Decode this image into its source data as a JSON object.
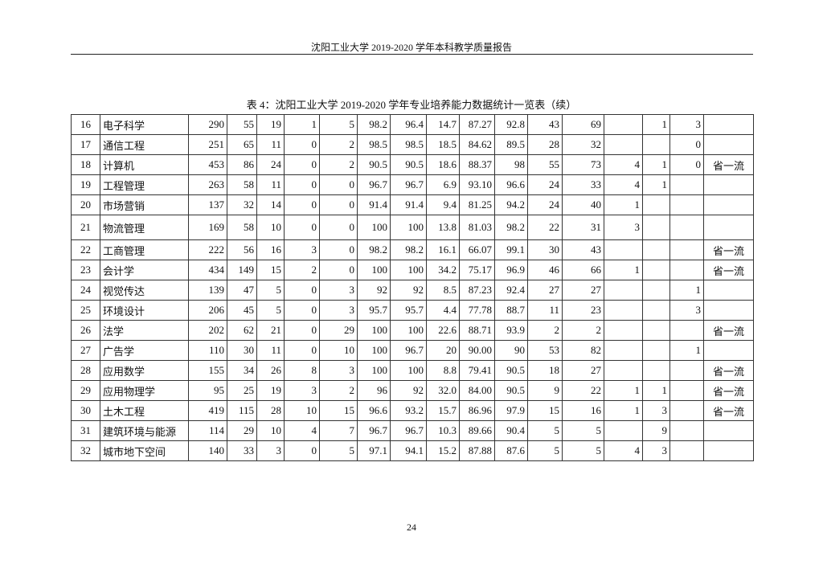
{
  "header": {
    "text": "沈阳工业大学 2019-2020 学年本科教学质量报告"
  },
  "table_title": "表 4：沈阳工业大学 2019-2020 学年专业培养能力数据统计一览表（续）",
  "rows": [
    {
      "no": "16",
      "name": "电子科学",
      "cells": [
        "290",
        "55",
        "19",
        "1",
        "5",
        "98.2",
        "96.4",
        "14.7",
        "87.27",
        "92.8",
        "43",
        "69",
        "",
        "1",
        "3",
        ""
      ]
    },
    {
      "no": "17",
      "name": "通信工程",
      "cells": [
        "251",
        "65",
        "11",
        "0",
        "2",
        "98.5",
        "98.5",
        "18.5",
        "84.62",
        "89.5",
        "28",
        "32",
        "",
        "",
        "0",
        ""
      ]
    },
    {
      "no": "18",
      "name": "计算机",
      "cells": [
        "453",
        "86",
        "24",
        "0",
        "2",
        "90.5",
        "90.5",
        "18.6",
        "88.37",
        "98",
        "55",
        "73",
        "4",
        "1",
        "0",
        "省一流"
      ]
    },
    {
      "no": "19",
      "name": "工程管理",
      "cells": [
        "263",
        "58",
        "11",
        "0",
        "0",
        "96.7",
        "96.7",
        "6.9",
        "93.10",
        "96.6",
        "24",
        "33",
        "4",
        "1",
        "",
        ""
      ]
    },
    {
      "no": "20",
      "name": "市场营销",
      "cells": [
        "137",
        "32",
        "14",
        "0",
        "0",
        "91.4",
        "91.4",
        "9.4",
        "81.25",
        "94.2",
        "24",
        "40",
        "1",
        "",
        "",
        ""
      ]
    },
    {
      "no": "21",
      "name": "物流管理",
      "cells": [
        "169",
        "58",
        "10",
        "0",
        "0",
        "100",
        "100",
        "13.8",
        "81.03",
        "98.2",
        "22",
        "31",
        "3",
        "",
        "",
        ""
      ]
    },
    {
      "no": "22",
      "name": "工商管理",
      "cells": [
        "222",
        "56",
        "16",
        "3",
        "0",
        "98.2",
        "98.2",
        "16.1",
        "66.07",
        "99.1",
        "30",
        "43",
        "",
        "",
        "",
        "省一流"
      ]
    },
    {
      "no": "23",
      "name": "会计学",
      "cells": [
        "434",
        "149",
        "15",
        "2",
        "0",
        "100",
        "100",
        "34.2",
        "75.17",
        "96.9",
        "46",
        "66",
        "1",
        "",
        "",
        "省一流"
      ]
    },
    {
      "no": "24",
      "name": "视觉传达",
      "cells": [
        "139",
        "47",
        "5",
        "0",
        "3",
        "92",
        "92",
        "8.5",
        "87.23",
        "92.4",
        "27",
        "27",
        "",
        "",
        "1",
        ""
      ]
    },
    {
      "no": "25",
      "name": "环境设计",
      "cells": [
        "206",
        "45",
        "5",
        "0",
        "3",
        "95.7",
        "95.7",
        "4.4",
        "77.78",
        "88.7",
        "11",
        "23",
        "",
        "",
        "3",
        ""
      ]
    },
    {
      "no": "26",
      "name": "法学",
      "cells": [
        "202",
        "62",
        "21",
        "0",
        "29",
        "100",
        "100",
        "22.6",
        "88.71",
        "93.9",
        "2",
        "2",
        "",
        "",
        "",
        "省一流"
      ]
    },
    {
      "no": "27",
      "name": "广告学",
      "cells": [
        "110",
        "30",
        "11",
        "0",
        "10",
        "100",
        "96.7",
        "20",
        "90.00",
        "90",
        "53",
        "82",
        "",
        "",
        "1",
        ""
      ]
    },
    {
      "no": "28",
      "name": "应用数学",
      "cells": [
        "155",
        "34",
        "26",
        "8",
        "3",
        "100",
        "100",
        "8.8",
        "79.41",
        "90.5",
        "18",
        "27",
        "",
        "",
        "",
        "省一流"
      ]
    },
    {
      "no": "29",
      "name": "应用物理学",
      "cells": [
        "95",
        "25",
        "19",
        "3",
        "2",
        "96",
        "92",
        "32.0",
        "84.00",
        "90.5",
        "9",
        "22",
        "1",
        "1",
        "",
        "省一流"
      ]
    },
    {
      "no": "30",
      "name": "土木工程",
      "cells": [
        "419",
        "115",
        "28",
        "10",
        "15",
        "96.6",
        "93.2",
        "15.7",
        "86.96",
        "97.9",
        "15",
        "16",
        "1",
        "3",
        "",
        "省一流"
      ]
    },
    {
      "no": "31",
      "name": "建筑环境与能源",
      "cells": [
        "114",
        "29",
        "10",
        "4",
        "7",
        "96.7",
        "96.7",
        "10.3",
        "89.66",
        "90.4",
        "5",
        "5",
        "",
        "9",
        "",
        ""
      ]
    },
    {
      "no": "32",
      "name": "城市地下空间",
      "cells": [
        "140",
        "33",
        "3",
        "0",
        "5",
        "97.1",
        "94.1",
        "15.2",
        "87.88",
        "87.6",
        "5",
        "5",
        "4",
        "3",
        "",
        ""
      ]
    }
  ],
  "page_number": "24"
}
